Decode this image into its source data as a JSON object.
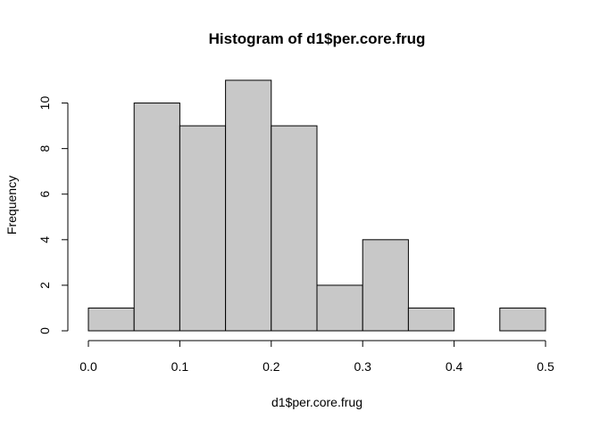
{
  "chart_data": {
    "type": "bar",
    "title": "Histogram of d1$per.core.frug",
    "xlabel": "d1$per.core.frug",
    "ylabel": "Frequency",
    "bin_edges": [
      0.0,
      0.05,
      0.1,
      0.15,
      0.2,
      0.25,
      0.3,
      0.35,
      0.4,
      0.45,
      0.5
    ],
    "values": [
      1,
      10,
      9,
      11,
      9,
      2,
      4,
      1,
      0,
      1
    ],
    "xlim": [
      0.0,
      0.5
    ],
    "ylim": [
      0,
      11
    ],
    "x_ticks": [
      "0.0",
      "0.1",
      "0.2",
      "0.3",
      "0.4",
      "0.5"
    ],
    "y_ticks": [
      "0",
      "2",
      "4",
      "6",
      "8",
      "10"
    ],
    "bar_color": "#c8c8c8",
    "grid": false
  }
}
